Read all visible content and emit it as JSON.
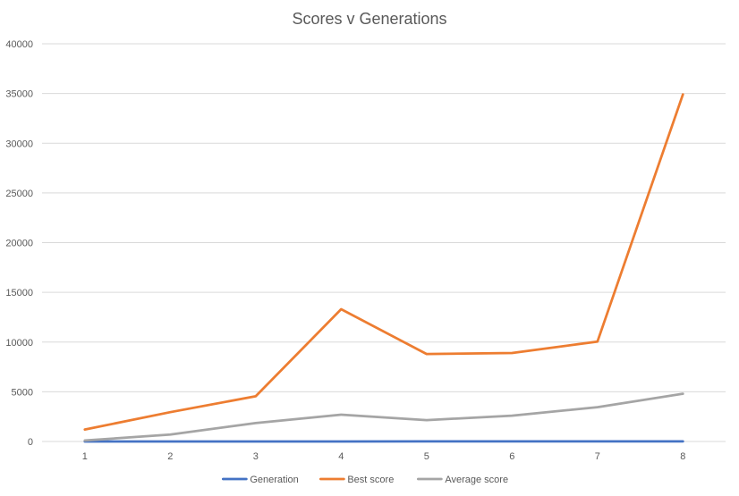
{
  "chart_data": {
    "type": "line",
    "title": "Scores v Generations",
    "xlabel": "",
    "ylabel": "",
    "categories": [
      "1",
      "2",
      "3",
      "4",
      "5",
      "6",
      "7",
      "8"
    ],
    "ylim": [
      0,
      40000
    ],
    "yticks": [
      0,
      5000,
      10000,
      15000,
      20000,
      25000,
      30000,
      35000,
      40000
    ],
    "grid": true,
    "legend_position": "bottom",
    "series": [
      {
        "name": "Generation",
        "color": "#4472c4",
        "values": [
          1,
          2,
          3,
          4,
          5,
          6,
          7,
          8
        ]
      },
      {
        "name": "Best score",
        "color": "#ed7d31",
        "values": [
          1200,
          2950,
          4550,
          13300,
          8800,
          8900,
          10050,
          34900
        ]
      },
      {
        "name": "Average score",
        "color": "#a5a5a5",
        "values": [
          100,
          700,
          1850,
          2700,
          2150,
          2600,
          3450,
          4800
        ]
      }
    ]
  }
}
